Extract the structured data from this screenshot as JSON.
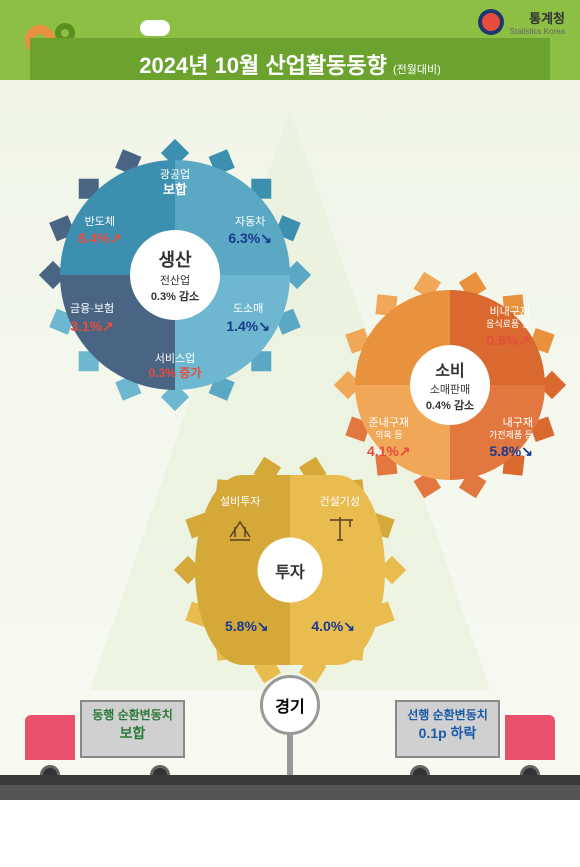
{
  "header": {
    "org_kr": "통계청",
    "org_en": "Statistics Korea",
    "title": "2024년 10월 산업활동동향",
    "subtitle": "(전월대비)"
  },
  "colors": {
    "header_bg": "#8dbf44",
    "title_bg": "#6ba32e",
    "up": "#e74c3c",
    "down": "#1a3a8e"
  },
  "gear_production": {
    "center_title": "생산",
    "center_sub": "전산업",
    "center_detail": "0.3% 감소",
    "segments": [
      {
        "name": "광공업",
        "sub": "보합",
        "value": "",
        "direction": "none",
        "color": "#5ba8c4"
      },
      {
        "name": "반도체",
        "value": "8.4%",
        "direction": "up",
        "color": "#3d8fb0"
      },
      {
        "name": "자동차",
        "value": "6.3%",
        "direction": "down",
        "color": "#5ba8c4"
      },
      {
        "name": "금융·보험",
        "value": "3.1%",
        "direction": "up",
        "color": "#4a6583"
      },
      {
        "name": "도소매",
        "value": "1.4%",
        "direction": "down",
        "color": "#6db8d0"
      },
      {
        "name": "서비스업",
        "value": "0.3% 증가",
        "direction": "up",
        "color": "#4a6583"
      }
    ]
  },
  "gear_consumption": {
    "center_title": "소비",
    "center_sub": "소매판매",
    "center_detail": "0.4% 감소",
    "segments": [
      {
        "name": "비내구재",
        "sub": "음식료품 등",
        "value": "0.6%",
        "direction": "up",
        "color": "#d9692e"
      },
      {
        "name": "준내구재",
        "sub": "의복 등",
        "value": "4.1%",
        "direction": "up",
        "color": "#f0a858"
      },
      {
        "name": "내구재",
        "sub": "가전제품 등",
        "value": "5.8%",
        "direction": "down",
        "color": "#e27840"
      }
    ]
  },
  "gear_investment": {
    "center_title": "투자",
    "segments": [
      {
        "name": "설비투자",
        "value": "5.8%",
        "direction": "down",
        "icon": "oilpump",
        "color": "#d4a839"
      },
      {
        "name": "건설기성",
        "value": "4.0%",
        "direction": "down",
        "icon": "crane",
        "color": "#e8bc4f"
      }
    ]
  },
  "economy": {
    "sign_label": "경기",
    "left": {
      "title": "동행 순환변동치",
      "value": "보합"
    },
    "right": {
      "title": "선행 순환변동치",
      "value": "0.1p 하락"
    }
  }
}
